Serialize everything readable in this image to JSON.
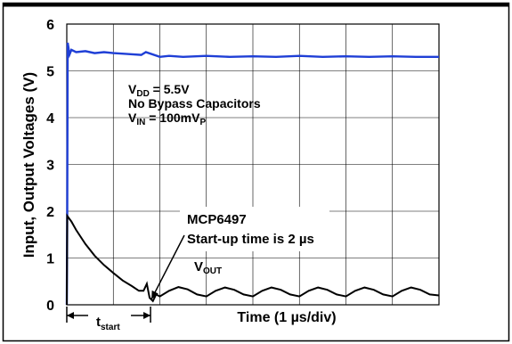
{
  "chart_data": {
    "type": "line",
    "title": "",
    "xlabel": "Time (1 µs/div)",
    "ylabel": "Input, Output Voltages (V)",
    "xlim": [
      0,
      8
    ],
    "ylim": [
      0,
      6
    ],
    "x_unit_per_div": "1 µs",
    "grid": true,
    "y_ticks": [
      "0",
      "1",
      "2",
      "3",
      "4",
      "5",
      "6"
    ],
    "series": [
      {
        "name": "",
        "color": "#1f3fd6",
        "points": [
          [
            0,
            0
          ],
          [
            0.01,
            1.9
          ],
          [
            0.02,
            5.6
          ],
          [
            0.06,
            5.35
          ],
          [
            0.1,
            5.45
          ],
          [
            0.2,
            5.4
          ],
          [
            0.4,
            5.42
          ],
          [
            0.6,
            5.38
          ],
          [
            0.8,
            5.4
          ],
          [
            1.0,
            5.38
          ],
          [
            1.3,
            5.36
          ],
          [
            1.6,
            5.34
          ],
          [
            1.7,
            5.4
          ],
          [
            2.0,
            5.3
          ],
          [
            2.2,
            5.32
          ],
          [
            2.5,
            5.3
          ],
          [
            3.0,
            5.32
          ],
          [
            3.5,
            5.3
          ],
          [
            4.0,
            5.31
          ],
          [
            4.5,
            5.3
          ],
          [
            5.0,
            5.32
          ],
          [
            5.5,
            5.3
          ],
          [
            6.0,
            5.31
          ],
          [
            6.5,
            5.3
          ],
          [
            7.0,
            5.31
          ],
          [
            7.5,
            5.3
          ],
          [
            8.0,
            5.3
          ]
        ]
      },
      {
        "name": "V_OUT",
        "color": "#000000",
        "points": [
          [
            0,
            0
          ],
          [
            0.01,
            1.9
          ],
          [
            0.1,
            1.78
          ],
          [
            0.2,
            1.6
          ],
          [
            0.4,
            1.3
          ],
          [
            0.6,
            1.05
          ],
          [
            0.8,
            0.85
          ],
          [
            1.0,
            0.68
          ],
          [
            1.2,
            0.52
          ],
          [
            1.4,
            0.4
          ],
          [
            1.55,
            0.3
          ],
          [
            1.65,
            0.3
          ],
          [
            1.72,
            0.45
          ],
          [
            1.78,
            0.15
          ],
          [
            1.85,
            0.08
          ],
          [
            1.92,
            0.22
          ],
          [
            2.0,
            0.18
          ],
          [
            2.2,
            0.3
          ],
          [
            2.4,
            0.38
          ],
          [
            2.6,
            0.33
          ],
          [
            2.8,
            0.22
          ],
          [
            3.0,
            0.18
          ],
          [
            3.2,
            0.3
          ],
          [
            3.4,
            0.37
          ],
          [
            3.6,
            0.32
          ],
          [
            3.8,
            0.22
          ],
          [
            4.0,
            0.18
          ],
          [
            4.2,
            0.3
          ],
          [
            4.4,
            0.37
          ],
          [
            4.6,
            0.32
          ],
          [
            4.8,
            0.22
          ],
          [
            5.0,
            0.18
          ],
          [
            5.2,
            0.3
          ],
          [
            5.4,
            0.37
          ],
          [
            5.6,
            0.32
          ],
          [
            5.8,
            0.22
          ],
          [
            6.0,
            0.18
          ],
          [
            6.2,
            0.3
          ],
          [
            6.4,
            0.37
          ],
          [
            6.6,
            0.32
          ],
          [
            6.8,
            0.22
          ],
          [
            7.0,
            0.18
          ],
          [
            7.2,
            0.3
          ],
          [
            7.4,
            0.37
          ],
          [
            7.6,
            0.32
          ],
          [
            7.8,
            0.22
          ],
          [
            8.0,
            0.2
          ]
        ]
      }
    ],
    "annotations": {
      "conditions": [
        "V_DD = 5.5V",
        "No Bypass Capacitors",
        "V_IN = 100mV_P"
      ],
      "callout_line1": "MCP6497",
      "callout_line2": "Start-up time is 2 µs",
      "vout_label_main": "V",
      "vout_label_sub": "OUT",
      "tstart_main": "t",
      "tstart_sub": "start",
      "tstart_span": [
        0,
        1.8
      ],
      "callout_target": [
        1.82,
        0.12
      ]
    }
  },
  "labels": {
    "vdd_main": "V",
    "vdd_sub": "DD",
    "vdd_rest": " = 5.5V",
    "no_bypass": "No Bypass Capacitors",
    "vin_main": "V",
    "vin_sub": "IN",
    "vin_rest": " = 100mV",
    "vin_sub2": "P"
  }
}
